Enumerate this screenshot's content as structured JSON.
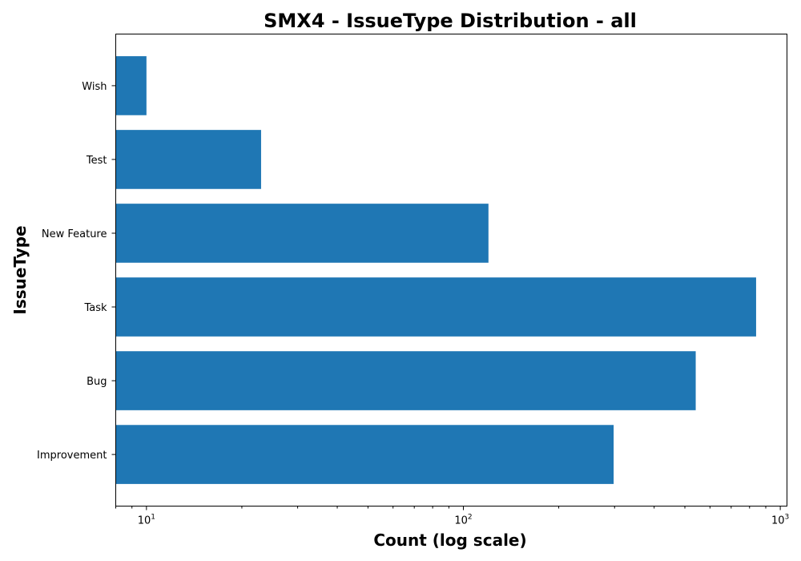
{
  "chart_data": {
    "type": "bar",
    "orientation": "horizontal",
    "title": "SMX4 - IssueType Distribution - all",
    "xlabel": "Count (log scale)",
    "ylabel": "IssueType",
    "xscale": "log",
    "xlim": [
      8,
      1050
    ],
    "categories": [
      "Improvement",
      "Bug",
      "Task",
      "New Feature",
      "Test",
      "Wish"
    ],
    "values": [
      298,
      541,
      839,
      120,
      23,
      10
    ],
    "colors": {
      "bar": "#1f77b4"
    },
    "grid": false,
    "x_ticks": [
      {
        "base": "10",
        "exp": "1",
        "value": 10
      },
      {
        "base": "10",
        "exp": "2",
        "value": 100
      },
      {
        "base": "10",
        "exp": "3",
        "value": 1000
      }
    ]
  }
}
